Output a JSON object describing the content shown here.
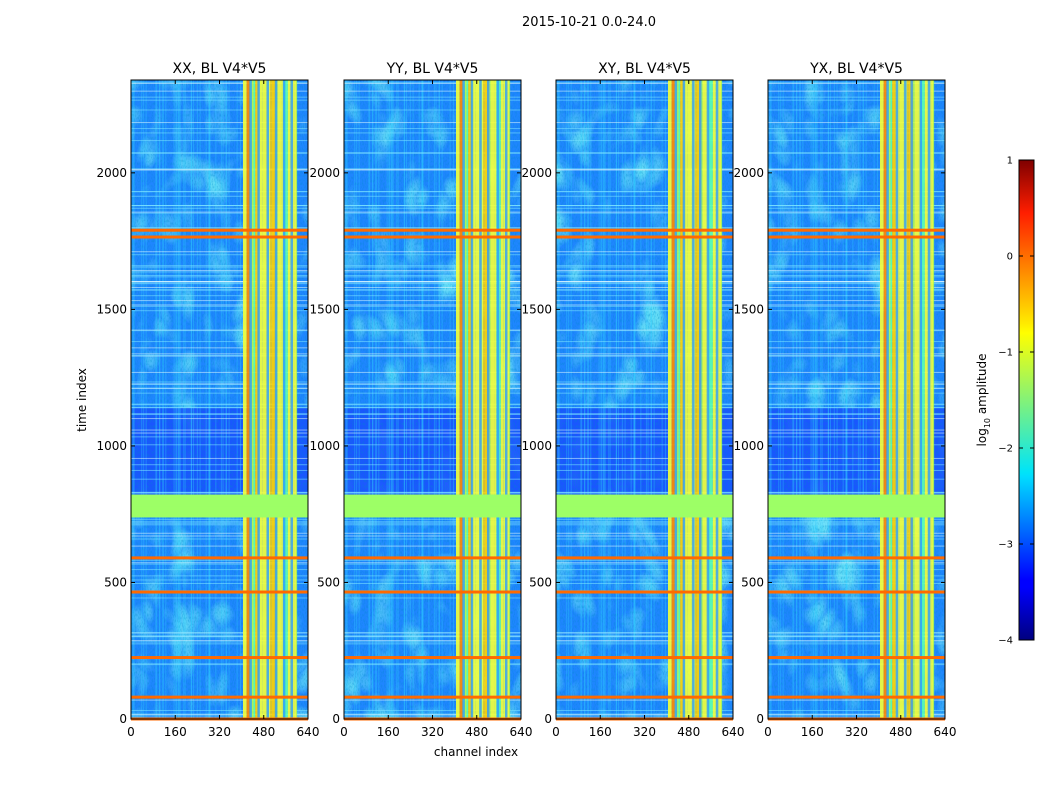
{
  "figure_title": "2015-10-21 0.0-24.0",
  "chart_data": {
    "type": "heatmap",
    "suptitle": "2015-10-21 0.0-24.0",
    "xlabel": "channel index",
    "ylabel": "time index",
    "xlim": [
      0,
      640
    ],
    "ylim": [
      0,
      2340
    ],
    "xticks": [
      0,
      160,
      320,
      480,
      640
    ],
    "yticks": [
      0,
      500,
      1000,
      1500,
      2000
    ],
    "panels": [
      {
        "title": "XX, BL V4*V5",
        "pol": "XX"
      },
      {
        "title": "YY, BL V4*V5",
        "pol": "YY"
      },
      {
        "title": "XY, BL V4*V5",
        "pol": "XY"
      },
      {
        "title": "YX, BL V4*V5",
        "pol": "YX"
      }
    ],
    "colorbar": {
      "label": "log10 amplitude",
      "label_base": "log",
      "label_sub": "10",
      "label_rest": " amplitude",
      "vmin": -4,
      "vmax": 1,
      "ticks": [
        -4,
        -3,
        -2,
        -1,
        0,
        1
      ],
      "tick_labels": [
        "−4",
        "−3",
        "−2",
        "−1",
        "0",
        "1"
      ],
      "colormap": "jet"
    },
    "features": {
      "rfi_channel_band": [
        405,
        600
      ],
      "flagged_rows": [
        0,
        80,
        225,
        465,
        590,
        760,
        800,
        1765,
        1790
      ],
      "quiet_block_rows": [
        800,
        1140
      ]
    }
  },
  "colors": {
    "background": "#ffffff",
    "axis": "#000000",
    "band_high": "#ff6a00",
    "band_mid": "#aaff55",
    "low": "#0040ff"
  }
}
